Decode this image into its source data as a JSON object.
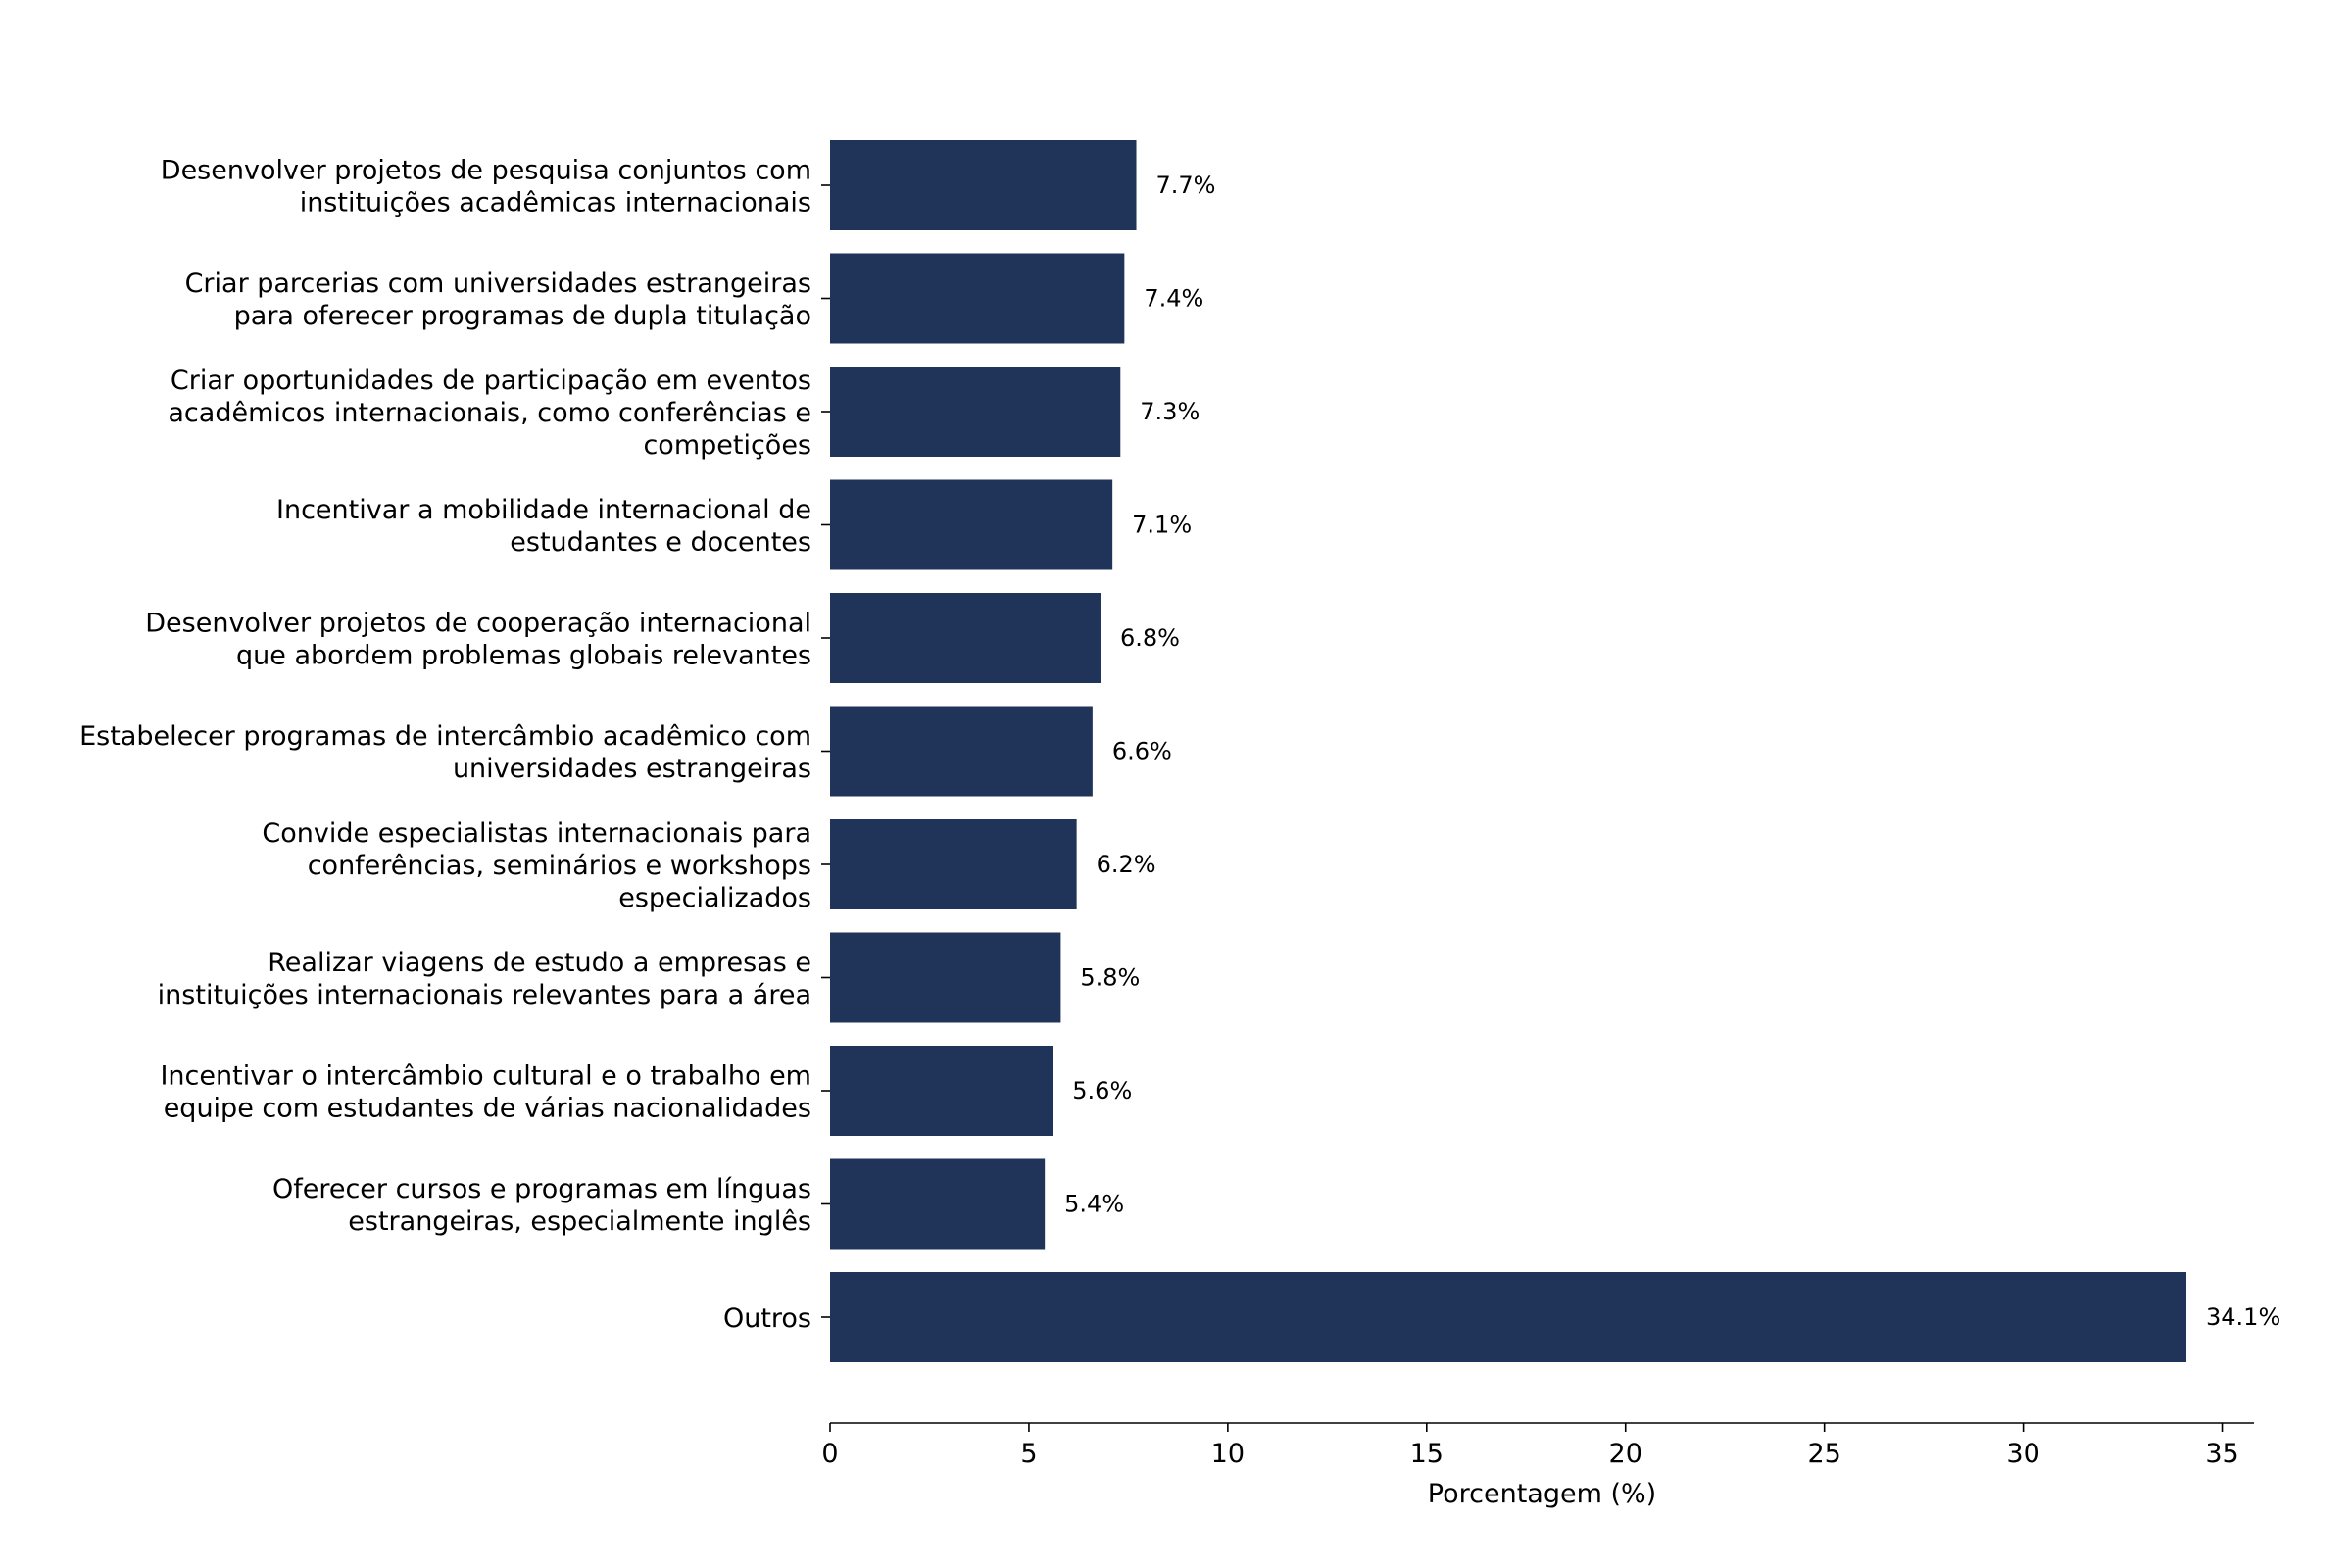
{
  "chart_data": {
    "type": "bar",
    "orientation": "horizontal",
    "categories": [
      [
        "Desenvolver projetos de pesquisa conjuntos com",
        "instituições acadêmicas internacionais"
      ],
      [
        "Criar parcerias com universidades estrangeiras",
        "para oferecer programas de dupla titulação"
      ],
      [
        "Criar oportunidades de participação em eventos",
        "acadêmicos internacionais, como conferências e",
        "competições"
      ],
      [
        "Incentivar a mobilidade internacional de",
        "estudantes e docentes"
      ],
      [
        "Desenvolver projetos de cooperação internacional",
        "que abordem problemas globais relevantes"
      ],
      [
        "Estabelecer programas de intercâmbio acadêmico com",
        "universidades estrangeiras"
      ],
      [
        "Convide especialistas internacionais para",
        "conferências, seminários e workshops",
        "especializados"
      ],
      [
        "Realizar viagens de estudo a empresas e",
        "instituições internacionais relevantes para a área"
      ],
      [
        "Incentivar o intercâmbio cultural e o trabalho em",
        "equipe com estudantes de várias nacionalidades"
      ],
      [
        "Oferecer cursos e programas em línguas",
        "estrangeiras, especialmente inglês"
      ],
      [
        "Outros"
      ]
    ],
    "values": [
      7.7,
      7.4,
      7.3,
      7.1,
      6.8,
      6.6,
      6.2,
      5.8,
      5.6,
      5.4,
      34.1
    ],
    "value_labels": [
      "7.7%",
      "7.4%",
      "7.3%",
      "7.1%",
      "6.8%",
      "6.6%",
      "6.2%",
      "5.8%",
      "5.6%",
      "5.4%",
      "34.1%"
    ],
    "xlabel": "Porcentagem (%)",
    "ylabel": "",
    "title": "",
    "xlim": [
      0,
      35.8
    ],
    "xticks": [
      0,
      5,
      10,
      15,
      20,
      25,
      30,
      35
    ],
    "xtick_labels": [
      "0",
      "5",
      "10",
      "15",
      "20",
      "25",
      "30",
      "35"
    ],
    "bar_color": "#203359",
    "grid": false,
    "legend": "none"
  }
}
